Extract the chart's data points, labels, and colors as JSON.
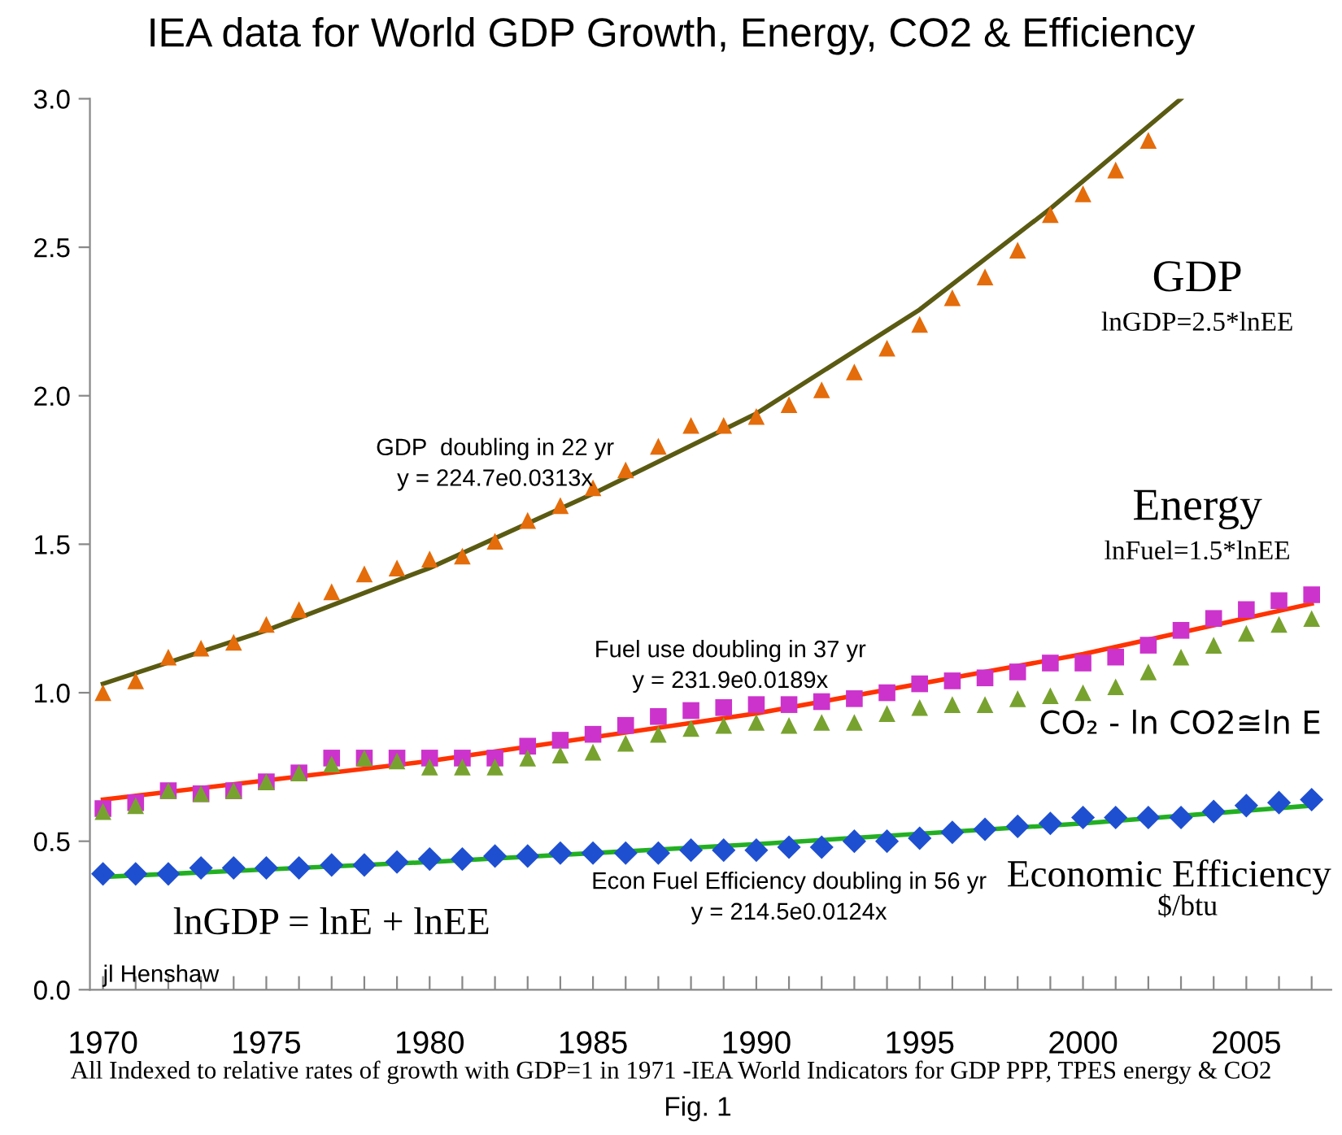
{
  "chart_data": {
    "type": "scatter",
    "title": "IEA data for World GDP Growth, Energy, CO2 & Efficiency",
    "x": [
      1970,
      1971,
      1972,
      1973,
      1974,
      1975,
      1976,
      1977,
      1978,
      1979,
      1980,
      1981,
      1982,
      1983,
      1984,
      1985,
      1986,
      1987,
      1988,
      1989,
      1990,
      1991,
      1992,
      1993,
      1994,
      1995,
      1996,
      1997,
      1998,
      1999,
      2000,
      2001,
      2002,
      2003,
      2004,
      2005,
      2006,
      2007
    ],
    "series": [
      {
        "marker": "triangle",
        "color": "#e46c0a",
        "x": [
          1970,
          1971,
          1972,
          1973,
          1974,
          1975,
          1976,
          1977,
          1978,
          1979,
          1980,
          1981,
          1982,
          1983,
          1984,
          1985,
          1986,
          1987,
          1988,
          1989,
          1990,
          1991,
          1992,
          1993,
          1994,
          1995,
          1996,
          1997,
          1998,
          1999,
          2000,
          2001,
          2002
        ],
        "values": [
          1.0,
          1.04,
          1.12,
          1.15,
          1.17,
          1.23,
          1.28,
          1.34,
          1.4,
          1.42,
          1.45,
          1.46,
          1.51,
          1.58,
          1.63,
          1.69,
          1.75,
          1.83,
          1.9,
          1.9,
          1.93,
          1.97,
          2.02,
          2.08,
          2.16,
          2.24,
          2.33,
          2.4,
          2.49,
          2.61,
          2.68,
          2.76,
          2.86
        ]
      },
      {
        "type": "line",
        "color": "#5a5a12",
        "x": [
          1970,
          1975,
          1980,
          1985,
          1990,
          1995,
          1999,
          2003
        ],
        "values": [
          1.03,
          1.21,
          1.42,
          1.67,
          1.94,
          2.29,
          2.63,
          3.0
        ]
      },
      {
        "marker": "square",
        "color": "#cc33cc",
        "values": [
          0.61,
          0.63,
          0.67,
          0.66,
          0.67,
          0.7,
          0.73,
          0.78,
          0.78,
          0.78,
          0.78,
          0.78,
          0.78,
          0.82,
          0.84,
          0.86,
          0.89,
          0.92,
          0.94,
          0.95,
          0.96,
          0.96,
          0.97,
          0.98,
          1.0,
          1.03,
          1.04,
          1.05,
          1.07,
          1.1,
          1.1,
          1.12,
          1.16,
          1.21,
          1.25,
          1.28,
          1.31,
          1.33
        ]
      },
      {
        "marker": "triangle",
        "color": "#78a22f",
        "values": [
          0.6,
          0.62,
          0.67,
          0.66,
          0.67,
          0.7,
          0.73,
          0.76,
          0.78,
          0.77,
          0.75,
          0.75,
          0.75,
          0.78,
          0.79,
          0.8,
          0.83,
          0.86,
          0.88,
          0.89,
          0.9,
          0.89,
          0.9,
          0.9,
          0.93,
          0.95,
          0.96,
          0.96,
          0.98,
          0.99,
          1.0,
          1.02,
          1.07,
          1.12,
          1.16,
          1.2,
          1.23,
          1.25
        ]
      },
      {
        "type": "line",
        "color": "#ff3300",
        "x": [
          1970,
          1980,
          1990,
          2000,
          2007
        ],
        "values": [
          0.64,
          0.77,
          0.93,
          1.13,
          1.3
        ]
      },
      {
        "marker": "diamond",
        "color": "#1f4fd1",
        "values": [
          0.39,
          0.39,
          0.39,
          0.41,
          0.41,
          0.41,
          0.41,
          0.42,
          0.42,
          0.43,
          0.44,
          0.44,
          0.45,
          0.45,
          0.46,
          0.46,
          0.46,
          0.46,
          0.47,
          0.47,
          0.47,
          0.48,
          0.48,
          0.5,
          0.5,
          0.51,
          0.53,
          0.54,
          0.55,
          0.56,
          0.58,
          0.58,
          0.58,
          0.58,
          0.6,
          0.62,
          0.63,
          0.64
        ]
      },
      {
        "type": "line",
        "color": "#22b022",
        "x": [
          1970,
          1980,
          1990,
          2000,
          2007
        ],
        "values": [
          0.38,
          0.43,
          0.49,
          0.56,
          0.62
        ]
      }
    ],
    "xlim": [
      1969.6,
      2007.6
    ],
    "xticks": [
      1970,
      {
        "value": 1971,
        "label": null
      },
      {
        "value": 1972,
        "label": null
      },
      {
        "value": 1973,
        "label": null
      },
      {
        "value": 1974,
        "label": null
      },
      1975,
      {
        "value": 1976,
        "label": null
      },
      {
        "value": 1977,
        "label": null
      },
      {
        "value": 1978,
        "label": null
      },
      {
        "value": 1979,
        "label": null
      },
      1980,
      {
        "value": 1981,
        "label": null
      },
      {
        "value": 1982,
        "label": null
      },
      {
        "value": 1983,
        "label": null
      },
      {
        "value": 1984,
        "label": null
      },
      1985,
      {
        "value": 1986,
        "label": null
      },
      {
        "value": 1987,
        "label": null
      },
      {
        "value": 1988,
        "label": null
      },
      {
        "value": 1989,
        "label": null
      },
      1990,
      {
        "value": 1991,
        "label": null
      },
      {
        "value": 1992,
        "label": null
      },
      {
        "value": 1993,
        "label": null
      },
      {
        "value": 1994,
        "label": null
      },
      1995,
      {
        "value": 1996,
        "label": null
      },
      {
        "value": 1997,
        "label": null
      },
      {
        "value": 1998,
        "label": null
      },
      {
        "value": 1999,
        "label": null
      },
      2000,
      {
        "value": 2001,
        "label": null
      },
      {
        "value": 2002,
        "label": null
      },
      {
        "value": 2003,
        "label": null
      },
      {
        "value": 2004,
        "label": null
      },
      2005,
      {
        "value": 2006,
        "label": null
      },
      {
        "value": 2007,
        "label": null
      }
    ],
    "ylim": [
      0,
      3
    ],
    "yticks": [
      {
        "value": 0,
        "label": "0.0"
      },
      0.5,
      {
        "value": 1,
        "label": "1.0"
      },
      1.5,
      {
        "value": 2,
        "label": "2.0"
      },
      2.5,
      {
        "value": 3,
        "label": "3.0"
      }
    ],
    "grid": false,
    "legend": false,
    "annotations": [
      "GDP",
      "lnGDP=2.5*lnEE",
      "Energy",
      "lnFuel=1.5*lnEE",
      "CO₂ - ln CO2≅ln E",
      "Economic Efficiency",
      "$/btu",
      "GDP  doubling in 22 yr\ny = 224.7e0.0313x",
      "Fuel use doubling in 37 yr\ny = 231.9e0.0189x",
      "Econ Fuel Efficiency doubling in 56 yr\ny = 214.5e0.0124x",
      "lnGDP = lnE + lnEE",
      "jl Henshaw",
      "All Indexed to relative rates of growth with GDP=1 in 1971 -IEA World Indicators for GDP PPP, TPES energy & CO2",
      "Fig. 1"
    ]
  }
}
